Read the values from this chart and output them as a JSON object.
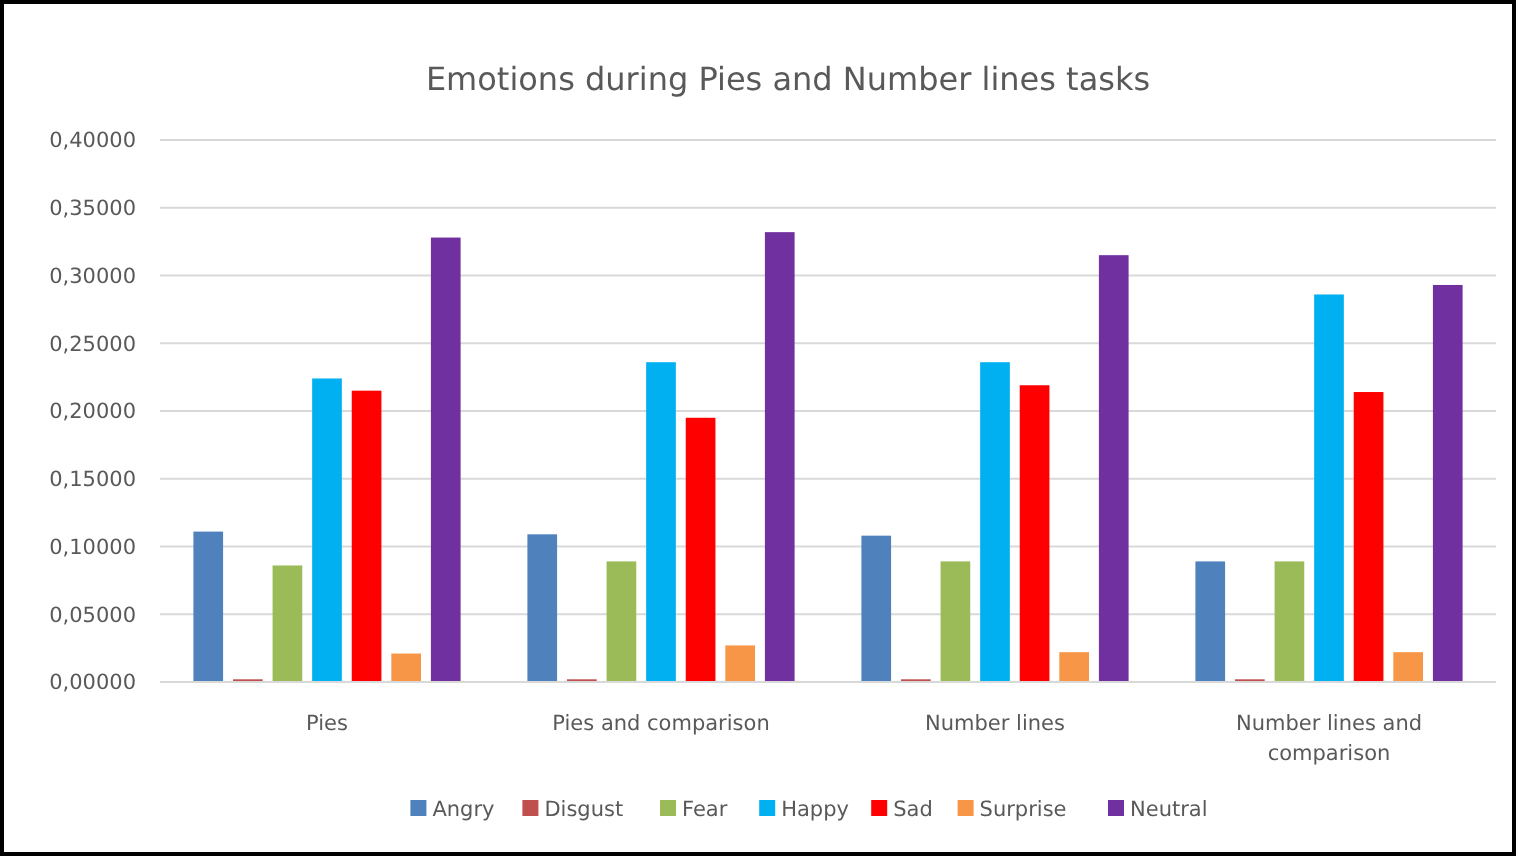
{
  "chart_data": {
    "type": "bar",
    "title": "Emotions during Pies and Number lines tasks",
    "categories": [
      "Pies",
      "Pies and comparison",
      "Number lines",
      "Number lines and comparison"
    ],
    "series": [
      {
        "name": "Angry",
        "color": "#4f81bd",
        "values": [
          0.111,
          0.109,
          0.108,
          0.089
        ]
      },
      {
        "name": "Disgust",
        "color": "#c0504d",
        "values": [
          0.002,
          0.002,
          0.002,
          0.002
        ]
      },
      {
        "name": "Fear",
        "color": "#9bbb59",
        "values": [
          0.086,
          0.089,
          0.089,
          0.089
        ]
      },
      {
        "name": "Happy",
        "color": "#00b0f0",
        "values": [
          0.224,
          0.236,
          0.236,
          0.286
        ]
      },
      {
        "name": "Sad",
        "color": "#ff0000",
        "values": [
          0.215,
          0.195,
          0.219,
          0.214
        ]
      },
      {
        "name": "Surprise",
        "color": "#f79646",
        "values": [
          0.021,
          0.027,
          0.022,
          0.022
        ]
      },
      {
        "name": "Neutral",
        "color": "#7030a0",
        "values": [
          0.328,
          0.332,
          0.315,
          0.293
        ]
      }
    ],
    "ylim": [
      0,
      0.4
    ],
    "yticks": [
      {
        "value": 0,
        "label": "0,00000"
      },
      {
        "value": 0.05,
        "label": "0,05000"
      },
      {
        "value": 0.1,
        "label": "0,10000"
      },
      {
        "value": 0.15,
        "label": "0,15000"
      },
      {
        "value": 0.2,
        "label": "0,20000"
      },
      {
        "value": 0.25,
        "label": "0,25000"
      },
      {
        "value": 0.3,
        "label": "0,30000"
      },
      {
        "value": 0.35,
        "label": "0,35000"
      },
      {
        "value": 0.4,
        "label": "0,40000"
      }
    ],
    "grid": "y",
    "legend": "bottom"
  }
}
